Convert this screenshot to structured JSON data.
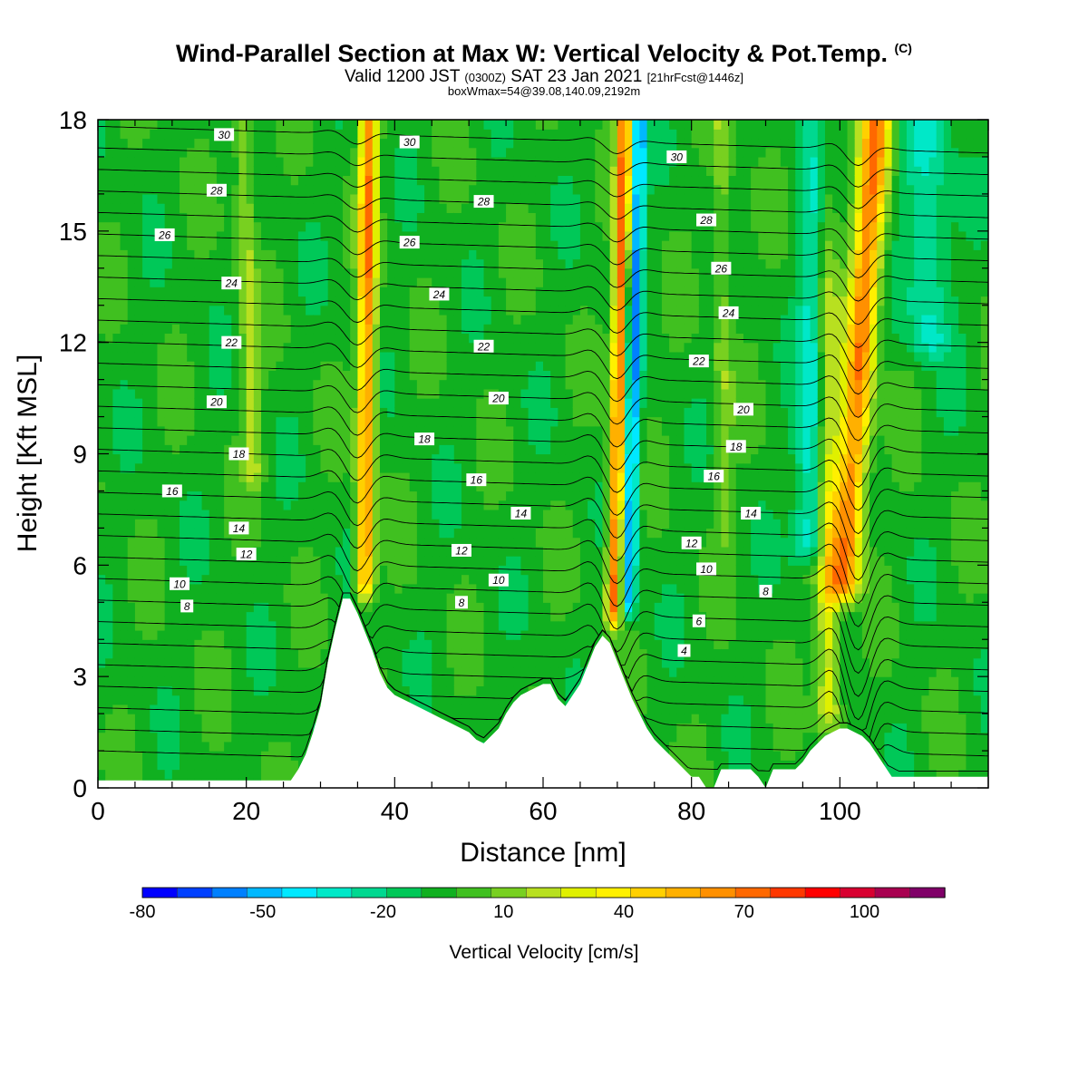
{
  "title": {
    "main": "Wind-Parallel Section at Max W: Vertical Velocity & Pot.Temp.",
    "copyright": "(C)",
    "valid_prefix": "Valid 1200 JST",
    "valid_utc": "(0300Z)",
    "valid_date": "SAT 23 Jan 2021",
    "forecast": "[21hrFcst@1446z]",
    "box_info": "boxWmax=54@39.08,140.09,2192m"
  },
  "chart_data": {
    "type": "heatmap",
    "xlabel": "Distance [nm]",
    "ylabel": "Height [Kft MSL]",
    "xlim": [
      0,
      120
    ],
    "ylim": [
      0,
      18
    ],
    "x_ticks": [
      0,
      20,
      40,
      60,
      80,
      100
    ],
    "y_ticks": [
      0,
      3,
      6,
      9,
      12,
      15,
      18
    ],
    "colorbar": {
      "title": "Vertical Velocity [cm/s]",
      "tick_labels": [
        "-80",
        "-50",
        "-20",
        "10",
        "40",
        "70",
        "100"
      ],
      "tick_values": [
        -80,
        -50,
        -20,
        10,
        40,
        70,
        100
      ],
      "range": [
        -80,
        120
      ],
      "colors": [
        "#0000ff",
        "#0040ff",
        "#0080ff",
        "#00b8ff",
        "#00e8ff",
        "#00e8c8",
        "#00d890",
        "#00c858",
        "#10b020",
        "#40c020",
        "#78d020",
        "#b8e020",
        "#e0f000",
        "#fff000",
        "#ffd000",
        "#ffb000",
        "#ff9000",
        "#ff6800",
        "#ff3800",
        "#ff0000",
        "#d80030",
        "#a80050",
        "#800068"
      ]
    },
    "background_value": -5,
    "updraft_bands": [
      {
        "name": "band-36",
        "x_top": 36.5,
        "x_bottom": 36.0,
        "y_bottom": 5.5,
        "peak": 70,
        "halfwidth": 1.2
      },
      {
        "name": "band-70",
        "x_top": 71.0,
        "x_bottom": 69.5,
        "y_bottom": 4.8,
        "peak": 78,
        "halfwidth": 1.0
      },
      {
        "name": "band-104",
        "x_top": 105.0,
        "x_bottom": 100.5,
        "y_bottom": 5.5,
        "peak": 72,
        "halfwidth": 2.0
      },
      {
        "name": "band-103-low",
        "x_top": 98.0,
        "x_bottom": 98.5,
        "y_bottom": 2.0,
        "peak": 38,
        "halfwidth": 1.6
      },
      {
        "name": "band-19",
        "x_top": 19.5,
        "x_bottom": 21.0,
        "y_bottom": 8.5,
        "peak": 22,
        "halfwidth": 1.3
      },
      {
        "name": "band-83",
        "x_top": 84.0,
        "x_bottom": 84.5,
        "y_bottom": 7.0,
        "peak": 18,
        "halfwidth": 1.2
      }
    ],
    "downdraft_bands": [
      {
        "name": "dn-73",
        "x_top": 73.0,
        "x_bottom": 71.5,
        "y_bottom": 5.0,
        "peak": -50,
        "halfwidth": 1.0
      },
      {
        "name": "dn-97",
        "x_top": 97.5,
        "x_bottom": 96.0,
        "y_bottom": 6.5,
        "peak": -35,
        "halfwidth": 2.2
      },
      {
        "name": "dn-111",
        "x_top": 111.5,
        "x_bottom": 112.0,
        "y_bottom": 12.0,
        "peak": -25,
        "halfwidth": 3.0
      }
    ],
    "terrain": {
      "x": [
        0,
        26,
        27,
        28,
        29,
        30,
        31,
        32,
        33,
        34,
        35,
        36,
        37,
        38,
        39,
        40,
        42,
        44,
        45,
        46,
        47,
        48,
        49,
        50,
        51,
        52,
        53,
        54,
        55,
        56,
        57,
        58,
        60,
        61,
        62,
        63,
        64,
        65,
        66,
        67,
        68,
        69,
        70,
        71,
        72,
        73,
        74,
        75,
        76,
        77,
        78,
        79,
        80,
        81,
        82,
        83,
        84,
        85,
        86,
        88,
        89,
        90,
        91,
        92,
        93,
        94,
        95,
        96,
        97,
        98,
        99,
        100,
        101,
        102,
        103,
        104,
        105,
        106,
        107,
        108,
        110,
        112,
        114,
        116,
        118,
        120
      ],
      "height": [
        0.2,
        0.2,
        0.5,
        0.9,
        1.5,
        2.2,
        3.4,
        4.3,
        5.1,
        5.1,
        4.7,
        4.2,
        3.7,
        3.1,
        2.7,
        2.5,
        2.3,
        2.1,
        2.0,
        1.9,
        1.8,
        1.7,
        1.6,
        1.5,
        1.3,
        1.2,
        1.4,
        1.6,
        2.0,
        2.3,
        2.5,
        2.6,
        2.8,
        2.8,
        2.4,
        2.2,
        2.5,
        2.8,
        3.3,
        3.8,
        4.1,
        3.9,
        3.4,
        2.9,
        2.4,
        2.0,
        1.6,
        1.3,
        1.1,
        0.9,
        0.7,
        0.5,
        0.3,
        0.3,
        0.0,
        0.0,
        0.5,
        0.5,
        0.5,
        0.5,
        0.3,
        0.0,
        0.5,
        0.5,
        0.5,
        0.5,
        0.7,
        1.0,
        1.2,
        1.4,
        1.5,
        1.6,
        1.6,
        1.5,
        1.4,
        1.2,
        0.9,
        0.6,
        0.3,
        0.3,
        0.3,
        0.3,
        0.3,
        0.3,
        0.3,
        0.3
      ]
    },
    "isentropes": {
      "count": 30,
      "bottom_height": 1.0,
      "spacing": 0.58,
      "wave_centers": [
        34.5,
        69.5,
        102.0
      ],
      "wave_amplitudes": [
        1.1,
        1.3,
        1.8
      ]
    },
    "contour_labels": [
      {
        "text": "30",
        "x": 17,
        "y": 17.6
      },
      {
        "text": "30",
        "x": 42,
        "y": 17.4
      },
      {
        "text": "30",
        "x": 78,
        "y": 17.0
      },
      {
        "text": "28",
        "x": 16,
        "y": 16.1
      },
      {
        "text": "28",
        "x": 52,
        "y": 15.8
      },
      {
        "text": "28",
        "x": 82,
        "y": 15.3
      },
      {
        "text": "26",
        "x": 9,
        "y": 14.9
      },
      {
        "text": "26",
        "x": 42,
        "y": 14.7
      },
      {
        "text": "26",
        "x": 84,
        "y": 14.0
      },
      {
        "text": "24",
        "x": 18,
        "y": 13.6
      },
      {
        "text": "24",
        "x": 46,
        "y": 13.3
      },
      {
        "text": "24",
        "x": 85,
        "y": 12.8
      },
      {
        "text": "22",
        "x": 18,
        "y": 12.0
      },
      {
        "text": "22",
        "x": 52,
        "y": 11.9
      },
      {
        "text": "22",
        "x": 81,
        "y": 11.5
      },
      {
        "text": "20",
        "x": 16,
        "y": 10.4
      },
      {
        "text": "20",
        "x": 54,
        "y": 10.5
      },
      {
        "text": "20",
        "x": 87,
        "y": 10.2
      },
      {
        "text": "18",
        "x": 19,
        "y": 9.0
      },
      {
        "text": "18",
        "x": 44,
        "y": 9.4
      },
      {
        "text": "18",
        "x": 86,
        "y": 9.2
      },
      {
        "text": "16",
        "x": 10,
        "y": 8.0
      },
      {
        "text": "16",
        "x": 51,
        "y": 8.3
      },
      {
        "text": "16",
        "x": 83,
        "y": 8.4
      },
      {
        "text": "14",
        "x": 19,
        "y": 7.0
      },
      {
        "text": "14",
        "x": 57,
        "y": 7.4
      },
      {
        "text": "14",
        "x": 88,
        "y": 7.4
      },
      {
        "text": "12",
        "x": 20,
        "y": 6.3
      },
      {
        "text": "12",
        "x": 49,
        "y": 6.4
      },
      {
        "text": "12",
        "x": 80,
        "y": 6.6
      },
      {
        "text": "10",
        "x": 11,
        "y": 5.5
      },
      {
        "text": "10",
        "x": 54,
        "y": 5.6
      },
      {
        "text": "10",
        "x": 82,
        "y": 5.9
      },
      {
        "text": "8",
        "x": 12,
        "y": 4.9
      },
      {
        "text": "8",
        "x": 49,
        "y": 5.0
      },
      {
        "text": "8",
        "x": 90,
        "y": 5.3
      },
      {
        "text": "6",
        "x": 81,
        "y": 4.5
      },
      {
        "text": "4",
        "x": 79,
        "y": 3.7
      }
    ]
  }
}
